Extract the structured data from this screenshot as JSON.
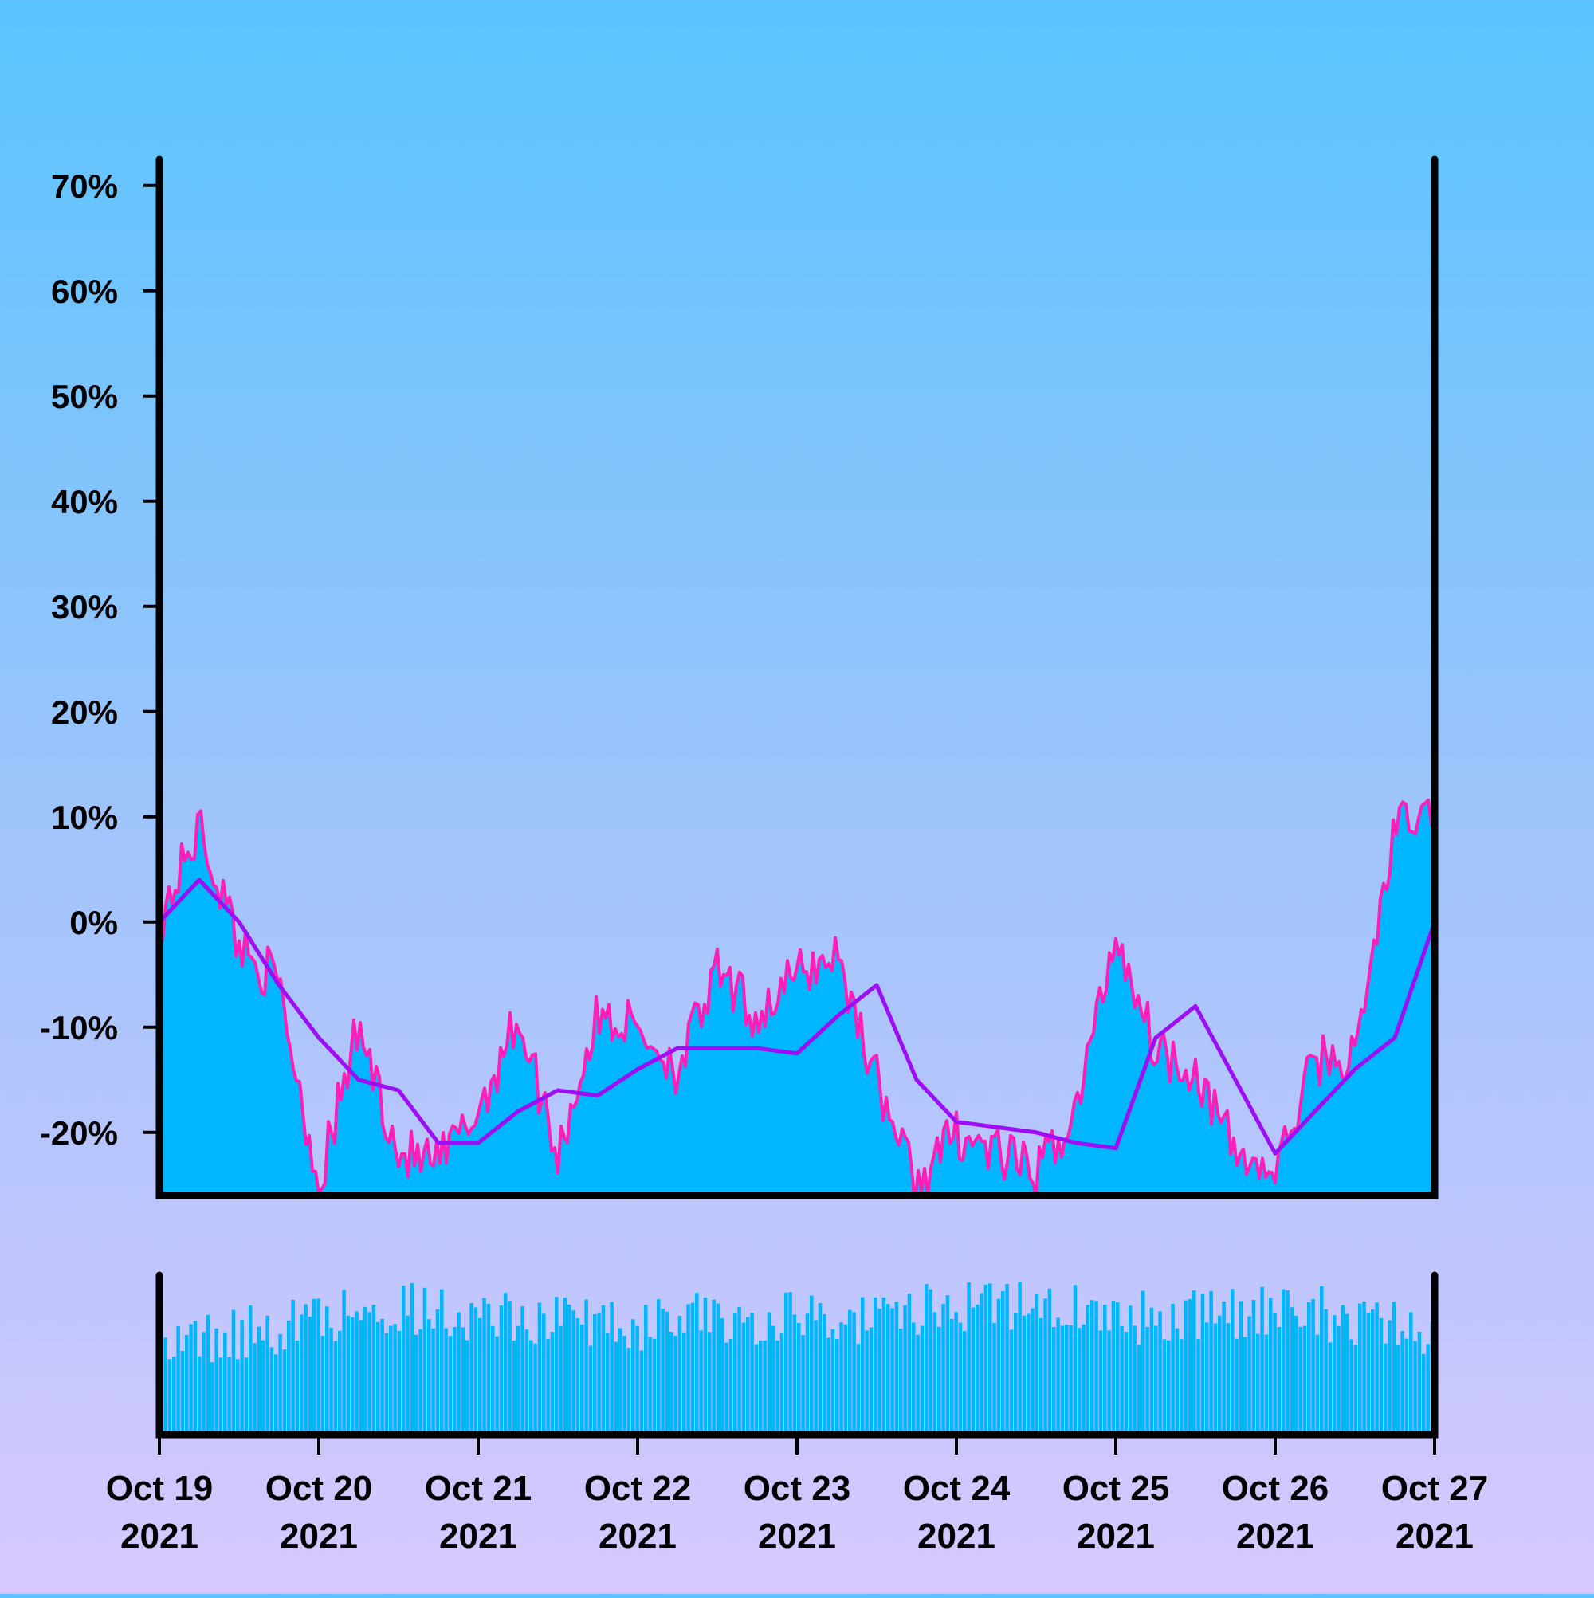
{
  "chart_data": {
    "type": "line",
    "x_range": [
      "2021-10-19",
      "2021-10-27"
    ],
    "x_ticks": [
      {
        "date": "2021-10-19",
        "line1": "Oct 19",
        "line2": "2021"
      },
      {
        "date": "2021-10-20",
        "line1": "Oct 20",
        "line2": "2021"
      },
      {
        "date": "2021-10-21",
        "line1": "Oct 21",
        "line2": "2021"
      },
      {
        "date": "2021-10-22",
        "line1": "Oct 22",
        "line2": "2021"
      },
      {
        "date": "2021-10-23",
        "line1": "Oct 23",
        "line2": "2021"
      },
      {
        "date": "2021-10-24",
        "line1": "Oct 24",
        "line2": "2021"
      },
      {
        "date": "2021-10-25",
        "line1": "Oct 25",
        "line2": "2021"
      },
      {
        "date": "2021-10-26",
        "line1": "Oct 26",
        "line2": "2021"
      },
      {
        "date": "2021-10-27",
        "line1": "Oct 27",
        "line2": "2021"
      }
    ],
    "y_ticks": [
      {
        "value": 70,
        "label": "70%"
      },
      {
        "value": 60,
        "label": "60%"
      },
      {
        "value": 50,
        "label": "50%"
      },
      {
        "value": 40,
        "label": "40%"
      },
      {
        "value": 30,
        "label": "30%"
      },
      {
        "value": 20,
        "label": "20%"
      },
      {
        "value": 10,
        "label": "10%"
      },
      {
        "value": 0,
        "label": "0%"
      },
      {
        "value": -10,
        "label": "-10%"
      },
      {
        "value": -20,
        "label": "-20%"
      }
    ],
    "ylim": [
      -26,
      74
    ],
    "grid": false,
    "colors": {
      "area_fill": "#00b7ff",
      "line": "#ff1fb8",
      "moving_average": "#9d0df5",
      "volume": "#00b7ff",
      "axis": "#000000"
    },
    "price_series": {
      "x": [
        "2021-10-19",
        "2021-10-19 06:00",
        "2021-10-19 12:00",
        "2021-10-19 18:00",
        "2021-10-20",
        "2021-10-20 06:00",
        "2021-10-20 12:00",
        "2021-10-20 18:00",
        "2021-10-21",
        "2021-10-21 06:00",
        "2021-10-21 12:00",
        "2021-10-21 18:00",
        "2021-10-22",
        "2021-10-22 06:00",
        "2021-10-22 12:00",
        "2021-10-22 18:00",
        "2021-10-23",
        "2021-10-23 06:00",
        "2021-10-23 12:00",
        "2021-10-23 18:00",
        "2021-10-24",
        "2021-10-24 06:00",
        "2021-10-24 12:00",
        "2021-10-24 18:00",
        "2021-10-25",
        "2021-10-25 06:00",
        "2021-10-25 12:00",
        "2021-10-25 18:00",
        "2021-10-26",
        "2021-10-26 06:00",
        "2021-10-26 12:00",
        "2021-10-26 18:00",
        "2021-10-27"
      ],
      "values": [
        0,
        9,
        -2,
        -6,
        -25,
        -10,
        -22,
        -23,
        -18,
        -9,
        -22,
        -9,
        -10,
        -14,
        -5,
        -9,
        -5,
        -3,
        -15,
        -25,
        -20,
        -22,
        -24,
        -18,
        -1,
        -12,
        -14,
        -22,
        -24,
        -13,
        -13,
        9,
        10
      ]
    },
    "moving_average": {
      "x": [
        "2021-10-19",
        "2021-10-19 06:00",
        "2021-10-19 12:00",
        "2021-10-19 18:00",
        "2021-10-20",
        "2021-10-20 06:00",
        "2021-10-20 12:00",
        "2021-10-20 18:00",
        "2021-10-21",
        "2021-10-21 06:00",
        "2021-10-21 12:00",
        "2021-10-21 18:00",
        "2021-10-22",
        "2021-10-22 06:00",
        "2021-10-22 12:00",
        "2021-10-22 18:00",
        "2021-10-23",
        "2021-10-23 06:00",
        "2021-10-23 12:00",
        "2021-10-23 18:00",
        "2021-10-24",
        "2021-10-24 06:00",
        "2021-10-24 12:00",
        "2021-10-24 18:00",
        "2021-10-25",
        "2021-10-25 06:00",
        "2021-10-25 12:00",
        "2021-10-25 18:00",
        "2021-10-26",
        "2021-10-26 06:00",
        "2021-10-26 12:00",
        "2021-10-26 18:00",
        "2021-10-27"
      ],
      "values": [
        0,
        4,
        0,
        -6,
        -11,
        -15,
        -16,
        -21,
        -21,
        -18,
        -16,
        -16.5,
        -14,
        -12,
        -12,
        -12,
        -12.5,
        -9,
        -6,
        -15,
        -19,
        -19.5,
        -20,
        -21,
        -21.5,
        -11,
        -8,
        -15,
        -22,
        -18,
        -14,
        -11,
        0
      ]
    },
    "volume": {
      "x": [
        "2021-10-19",
        "2021-10-19 12:00",
        "2021-10-20",
        "2021-10-20 12:00",
        "2021-10-21",
        "2021-10-21 12:00",
        "2021-10-22",
        "2021-10-22 12:00",
        "2021-10-23",
        "2021-10-23 12:00",
        "2021-10-24",
        "2021-10-24 12:00",
        "2021-10-25",
        "2021-10-25 12:00",
        "2021-10-26",
        "2021-10-26 12:00",
        "2021-10-27"
      ],
      "values": [
        0.55,
        0.6,
        0.72,
        0.78,
        0.72,
        0.7,
        0.68,
        0.72,
        0.72,
        0.7,
        0.8,
        0.8,
        0.7,
        0.72,
        0.75,
        0.72,
        0.6
      ]
    }
  }
}
